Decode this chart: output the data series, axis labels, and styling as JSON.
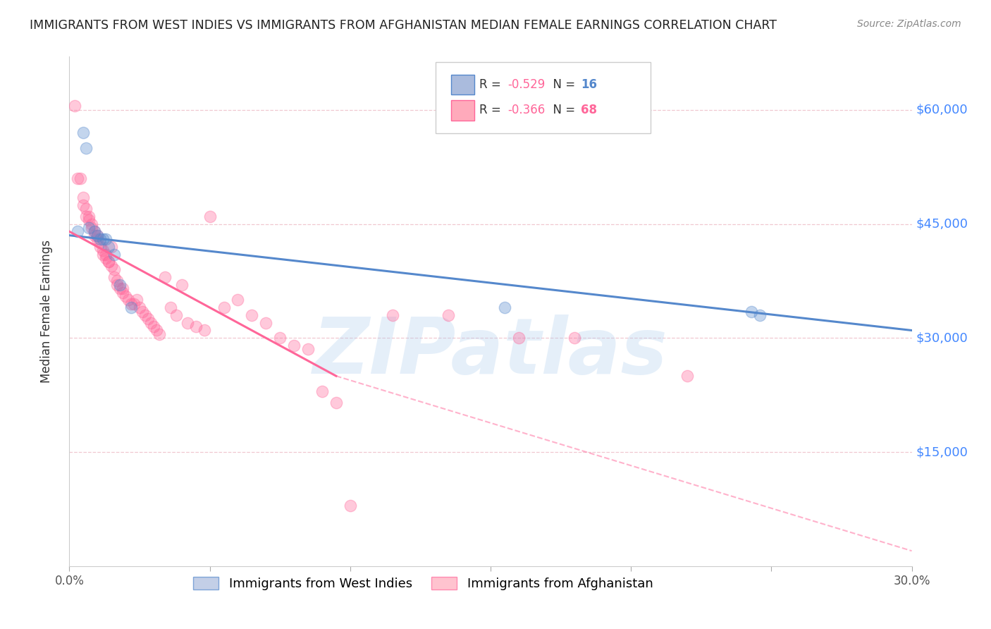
{
  "title": "IMMIGRANTS FROM WEST INDIES VS IMMIGRANTS FROM AFGHANISTAN MEDIAN FEMALE EARNINGS CORRELATION CHART",
  "source": "Source: ZipAtlas.com",
  "ylabel": "Median Female Earnings",
  "watermark": "ZIPatlas",
  "yticks": [
    0,
    15000,
    30000,
    45000,
    60000
  ],
  "ytick_labels": [
    "",
    "$15,000",
    "$30,000",
    "$45,000",
    "$60,000"
  ],
  "xticks": [
    0.0,
    0.05,
    0.1,
    0.15,
    0.2,
    0.25,
    0.3
  ],
  "xtick_labels": [
    "0.0%",
    "",
    "",
    "",
    "",
    "",
    "30.0%"
  ],
  "xlim": [
    0.0,
    0.3
  ],
  "ylim": [
    0,
    67000
  ],
  "blue_points_x": [
    0.003,
    0.005,
    0.006,
    0.007,
    0.009,
    0.01,
    0.011,
    0.012,
    0.013,
    0.014,
    0.016,
    0.018,
    0.022,
    0.155,
    0.243,
    0.246
  ],
  "blue_points_y": [
    44000,
    57000,
    55000,
    44500,
    44000,
    43500,
    43000,
    43000,
    43000,
    42000,
    41000,
    37000,
    34000,
    34000,
    33500,
    33000
  ],
  "pink_points_x": [
    0.002,
    0.003,
    0.004,
    0.005,
    0.005,
    0.006,
    0.006,
    0.007,
    0.007,
    0.008,
    0.008,
    0.009,
    0.009,
    0.01,
    0.01,
    0.011,
    0.011,
    0.012,
    0.012,
    0.013,
    0.013,
    0.014,
    0.014,
    0.015,
    0.015,
    0.016,
    0.016,
    0.017,
    0.017,
    0.018,
    0.019,
    0.019,
    0.02,
    0.021,
    0.022,
    0.023,
    0.024,
    0.025,
    0.026,
    0.027,
    0.028,
    0.029,
    0.03,
    0.031,
    0.032,
    0.034,
    0.036,
    0.038,
    0.04,
    0.042,
    0.045,
    0.048,
    0.05,
    0.055,
    0.06,
    0.065,
    0.07,
    0.075,
    0.08,
    0.085,
    0.09,
    0.095,
    0.1,
    0.115,
    0.135,
    0.16,
    0.18,
    0.22
  ],
  "pink_points_y": [
    60500,
    51000,
    51000,
    48500,
    47500,
    47000,
    46000,
    46000,
    45500,
    45000,
    44500,
    44000,
    43500,
    43500,
    43000,
    42500,
    42000,
    41500,
    41000,
    41000,
    40500,
    40000,
    40000,
    39500,
    42000,
    39000,
    38000,
    37500,
    37000,
    36500,
    36500,
    36000,
    35500,
    35000,
    34500,
    34500,
    35000,
    34000,
    33500,
    33000,
    32500,
    32000,
    31500,
    31000,
    30500,
    38000,
    34000,
    33000,
    37000,
    32000,
    31500,
    31000,
    46000,
    34000,
    35000,
    33000,
    32000,
    30000,
    29000,
    28500,
    23000,
    21500,
    8000,
    33000,
    33000,
    30000,
    30000,
    25000
  ],
  "blue_line": {
    "x0": 0.0,
    "y0": 43500,
    "x1": 0.3,
    "y1": 31000
  },
  "pink_line_solid_x0": 0.0,
  "pink_line_solid_y0": 44000,
  "pink_line_solid_x1": 0.095,
  "pink_line_solid_y1": 25000,
  "pink_line_dashed_x0": 0.095,
  "pink_line_dashed_y0": 25000,
  "pink_line_dashed_x1": 0.3,
  "pink_line_dashed_y1": 2000,
  "blue_color": "#5588cc",
  "pink_color": "#ff6699",
  "grid_color": "#f0c8d0",
  "title_color": "#222222",
  "axis_label_color": "#333333",
  "right_tick_color": "#4488ff",
  "source_color": "#888888"
}
